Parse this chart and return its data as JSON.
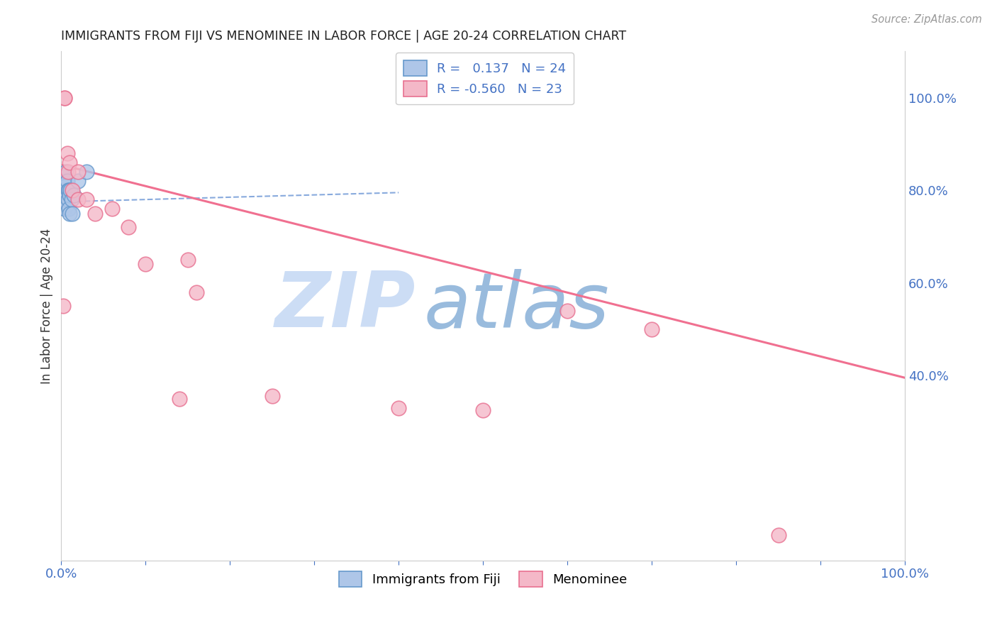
{
  "title": "IMMIGRANTS FROM FIJI VS MENOMINEE IN LABOR FORCE | AGE 20-24 CORRELATION CHART",
  "source": "Source: ZipAtlas.com",
  "ylabel": "In Labor Force | Age 20-24",
  "ylabel_right_ticks": [
    "40.0%",
    "60.0%",
    "80.0%",
    "100.0%"
  ],
  "ylabel_right_vals": [
    0.4,
    0.6,
    0.8,
    1.0
  ],
  "fiji_color": "#aec6e8",
  "fiji_edge": "#6699cc",
  "menominee_color": "#f4b8c8",
  "menominee_edge": "#e87090",
  "fiji_trendline_color": "#88aadd",
  "menominee_trendline_color": "#f07090",
  "fiji_points_x": [
    0.002,
    0.003,
    0.003,
    0.004,
    0.004,
    0.005,
    0.005,
    0.006,
    0.006,
    0.007,
    0.007,
    0.007,
    0.008,
    0.008,
    0.009,
    0.009,
    0.01,
    0.01,
    0.011,
    0.012,
    0.013,
    0.015,
    0.02,
    0.03
  ],
  "fiji_points_y": [
    0.78,
    0.83,
    0.8,
    0.79,
    0.76,
    0.82,
    0.79,
    0.84,
    0.81,
    0.79,
    0.77,
    0.82,
    0.8,
    0.78,
    0.8,
    0.76,
    0.79,
    0.75,
    0.8,
    0.78,
    0.75,
    0.79,
    0.82,
    0.84
  ],
  "menominee_points_x": [
    0.002,
    0.004,
    0.004,
    0.007,
    0.008,
    0.01,
    0.013,
    0.02,
    0.02,
    0.03,
    0.04,
    0.06,
    0.08,
    0.1,
    0.14,
    0.15,
    0.16,
    0.25,
    0.4,
    0.5,
    0.6,
    0.7,
    0.85
  ],
  "menominee_points_y": [
    0.55,
    1.0,
    1.0,
    0.88,
    0.84,
    0.86,
    0.8,
    0.84,
    0.78,
    0.78,
    0.75,
    0.76,
    0.72,
    0.64,
    0.35,
    0.65,
    0.58,
    0.355,
    0.33,
    0.325,
    0.54,
    0.5,
    0.055
  ],
  "grid_color": "#e8e8e8",
  "background_color": "#ffffff",
  "watermark_zip": "ZIP",
  "watermark_atlas": "atlas",
  "watermark_color_zip": "#ccddf5",
  "watermark_color_atlas": "#99bbdd",
  "xlim": [
    0.0,
    1.0
  ],
  "ylim": [
    0.0,
    1.1
  ],
  "menominee_trend_x0": 0.0,
  "menominee_trend_y0": 0.855,
  "menominee_trend_x1": 1.0,
  "menominee_trend_y1": 0.395,
  "fiji_trend_x0": 0.0,
  "fiji_trend_y0": 0.775,
  "fiji_trend_x1": 0.4,
  "fiji_trend_y1": 0.795
}
